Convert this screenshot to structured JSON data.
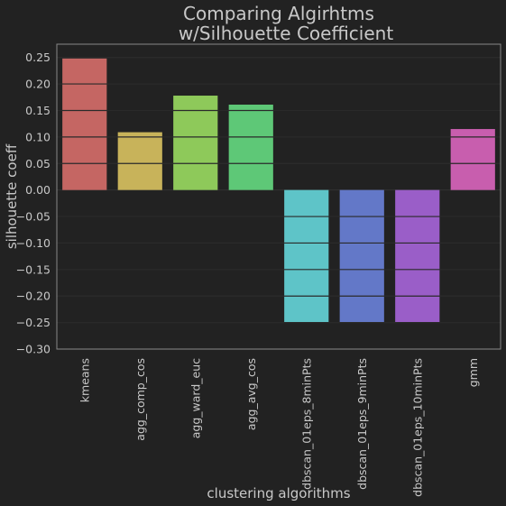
{
  "chart_data": {
    "type": "bar",
    "title_lines": [
      "Comparing Algirhtms",
      "w/Silhouette Coefficient"
    ],
    "xlabel": "clustering algorithms",
    "ylabel": "silhouette coeff",
    "categories": [
      "kmeans",
      "agg_comp_cos",
      "agg_ward_euc",
      "agg_avg_cos",
      "dbscan_01eps_8minPts",
      "dbscan_01eps_9minPts",
      "dbscan_01eps_10minPts",
      "gmm"
    ],
    "values": [
      0.248,
      0.109,
      0.178,
      0.161,
      -0.25,
      -0.25,
      -0.25,
      0.115
    ],
    "colors": [
      "#c56663",
      "#c8b35a",
      "#8ec95a",
      "#5ec877",
      "#5ec4c8",
      "#6378c8",
      "#9a5ec8",
      "#c85eae"
    ],
    "ylim": [
      -0.3,
      0.275
    ],
    "yticks": [
      0.25,
      0.2,
      0.15,
      0.1,
      0.05,
      0.0,
      -0.05,
      -0.1,
      -0.15,
      -0.2,
      -0.25,
      -0.3
    ],
    "ytick_labels": [
      "0.25",
      "0.20",
      "0.15",
      "0.10",
      "0.05",
      "0.00",
      "−0.05",
      "−0.10",
      "−0.15",
      "−0.20",
      "−0.25",
      "−0.30"
    ],
    "grid": true,
    "background": "#222222",
    "text_color": "#c8c8c8",
    "grid_color": "#333333",
    "spine_color": "#888888"
  }
}
